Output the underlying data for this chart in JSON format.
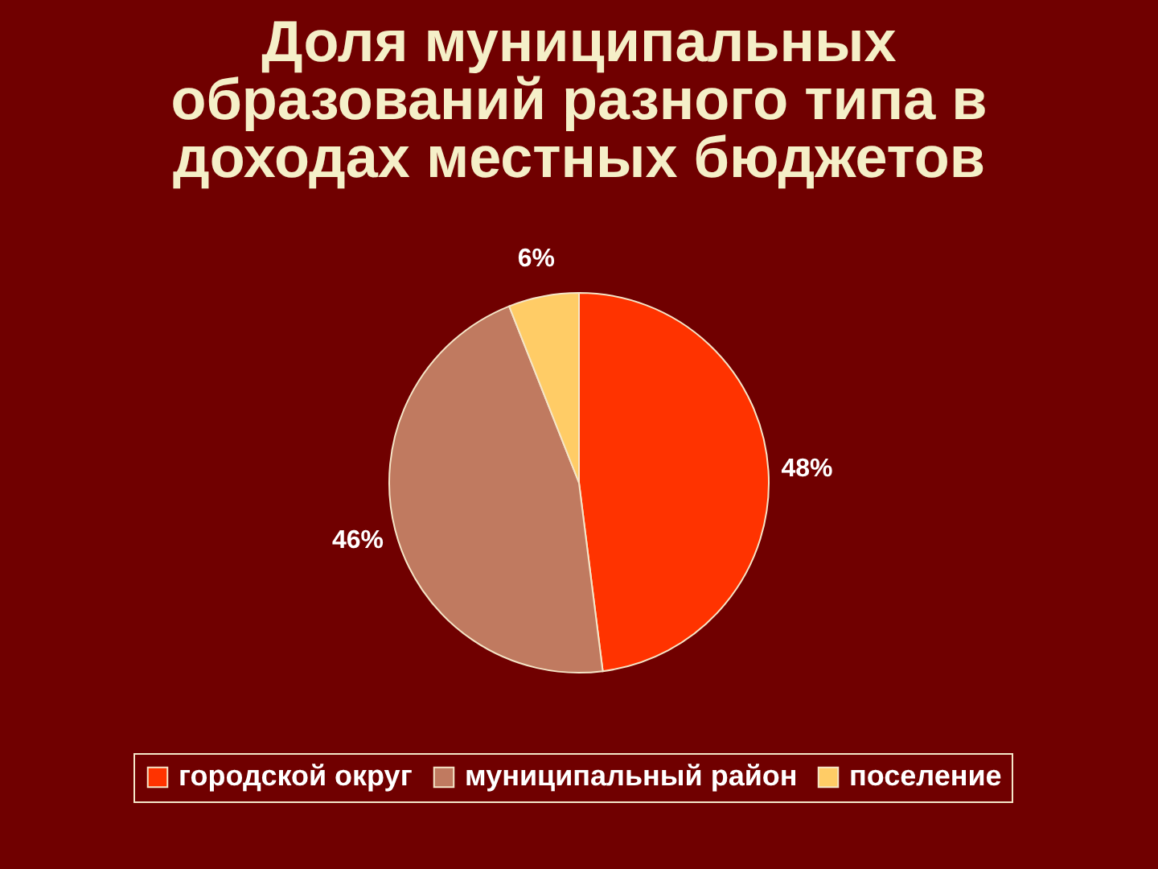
{
  "chart_data": {
    "type": "pie",
    "title": "Доля муниципальных образований разного типа в доходах местных бюджетов",
    "categories": [
      "городской округ",
      "муниципальный район",
      "поселение"
    ],
    "values": [
      48,
      46,
      6
    ],
    "colors": [
      "#ff3300",
      "#c07a60",
      "#ffcc66"
    ],
    "value_labels": [
      "48%",
      "46%",
      "6%"
    ],
    "legend": "bottom"
  }
}
